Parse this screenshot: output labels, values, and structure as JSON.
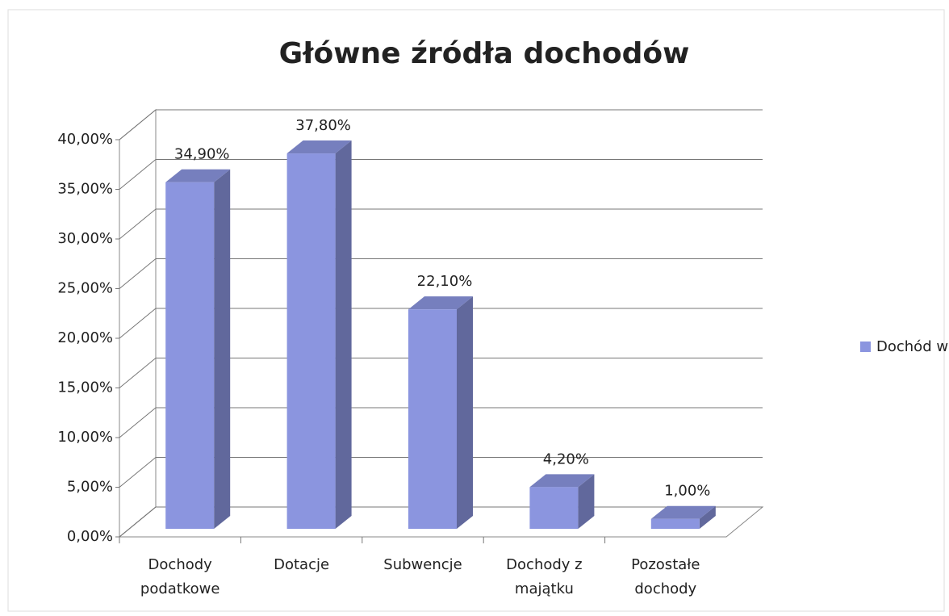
{
  "chart_data": {
    "type": "bar3d",
    "title": "Główne źródła dochodów",
    "categories": [
      "Dochody podatkowe",
      "Dotacje",
      "Subwencje",
      "Dochody z majątku",
      "Pozostałe dochody"
    ],
    "series": [
      {
        "name": "Dochód w %",
        "color": "#8b95df",
        "values": [
          34.9,
          37.8,
          22.1,
          4.2,
          1.0
        ],
        "value_labels": [
          "34,90%",
          "37,80%",
          "22,10%",
          "4,20%",
          "1,00%"
        ]
      }
    ],
    "ylim": [
      0,
      40
    ],
    "yticks": [
      {
        "value": 0,
        "label": "0,00%"
      },
      {
        "value": 5,
        "label": "5,00%"
      },
      {
        "value": 10,
        "label": "10,00%"
      },
      {
        "value": 15,
        "label": "15,00%"
      },
      {
        "value": 20,
        "label": "20,00%"
      },
      {
        "value": 25,
        "label": "25,00%"
      },
      {
        "value": 30,
        "label": "30,00%"
      },
      {
        "value": 35,
        "label": "35,00%"
      },
      {
        "value": 40,
        "label": "40,00%"
      }
    ],
    "grid": true,
    "legend": "right"
  }
}
